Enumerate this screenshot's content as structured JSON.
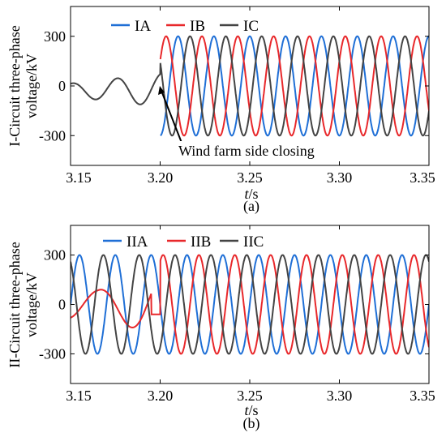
{
  "chart_data": [
    {
      "type": "line",
      "panel_label": "(a)",
      "xlabel_italic": "t",
      "xlabel_unit": "/s",
      "ylabel_line1": "I-Circuit three-phase",
      "ylabel_line2": "voltage/kV",
      "xlim": [
        3.15,
        3.35
      ],
      "ylim": [
        -480,
        480
      ],
      "xticks": [
        3.15,
        3.2,
        3.25,
        3.3,
        3.35
      ],
      "xtick_labels": [
        "3.15",
        "3.20",
        "3.25",
        "3.30",
        "3.35"
      ],
      "yticks": [
        -300,
        0,
        300
      ],
      "ytick_labels": [
        "-300",
        "0",
        "300"
      ],
      "legend_position": "top",
      "series": [
        {
          "name": "IA",
          "color": "#1f6fd6",
          "amplitude_kv": 300,
          "frequency_hz": 50,
          "phase_deg": 270,
          "pre_closing": "open",
          "closing_time_s": 3.2
        },
        {
          "name": "IB",
          "color": "#e8282b",
          "amplitude_kv": 300,
          "frequency_hz": 50,
          "phase_deg": 30,
          "pre_closing": "open",
          "closing_time_s": 3.2
        },
        {
          "name": "IC",
          "color": "#444444",
          "amplitude_kv": 300,
          "frequency_hz": 50,
          "phase_deg": 150,
          "pre_closing": "damped",
          "closing_time_s": 3.2
        }
      ],
      "annotation": {
        "text": "Wind farm side closing",
        "x": 3.2,
        "y": 0
      }
    },
    {
      "type": "line",
      "panel_label": "(b)",
      "xlabel_italic": "t",
      "xlabel_unit": "/s",
      "ylabel_line1": "II-Circuit three-phase",
      "ylabel_line2": "voltage/kV",
      "xlim": [
        3.15,
        3.35
      ],
      "ylim": [
        -480,
        480
      ],
      "xticks": [
        3.15,
        3.2,
        3.25,
        3.3,
        3.35
      ],
      "xtick_labels": [
        "3.15",
        "3.20",
        "3.25",
        "3.30",
        "3.35"
      ],
      "yticks": [
        -300,
        0,
        300
      ],
      "ytick_labels": [
        "-300",
        "0",
        "300"
      ],
      "legend_position": "top",
      "series": [
        {
          "name": "IIA",
          "color": "#1f6fd6",
          "amplitude_kv": 300,
          "frequency_hz": 50,
          "phase_deg": 180,
          "pre_closing": "full"
        },
        {
          "name": "IIB",
          "color": "#e8282b",
          "amplitude_kv": 300,
          "frequency_hz": 50,
          "phase_deg": 60,
          "pre_closing": "damped",
          "closing_time_s": 3.2
        },
        {
          "name": "IIC",
          "color": "#444444",
          "amplitude_kv": 300,
          "frequency_hz": 50,
          "phase_deg": 300,
          "pre_closing": "full"
        }
      ]
    }
  ]
}
